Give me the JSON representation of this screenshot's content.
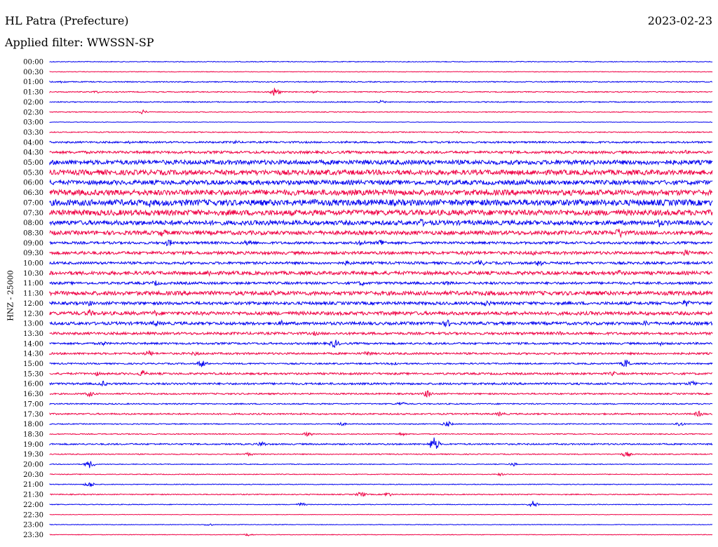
{
  "header": {
    "station": "HL Patra (Prefecture)",
    "filter": "Applied filter: WWSSN-SP",
    "date": "2023-02-23"
  },
  "chart_data": {
    "type": "line",
    "ylabel": "HNZ - 25000",
    "colors": [
      "#0000ee",
      "#ee0044"
    ],
    "rows": [
      {
        "time": "00:00",
        "a": 0.08,
        "ev": []
      },
      {
        "time": "00:30",
        "a": 0.06,
        "ev": []
      },
      {
        "time": "01:00",
        "a": 0.1,
        "ev": [
          [
            0.02,
            0.3
          ]
        ]
      },
      {
        "time": "01:30",
        "a": 0.1,
        "ev": [
          [
            0.07,
            0.3
          ],
          [
            0.34,
            1.0
          ],
          [
            0.4,
            0.3
          ]
        ]
      },
      {
        "time": "02:00",
        "a": 0.1,
        "ev": [
          [
            0.5,
            0.35
          ]
        ]
      },
      {
        "time": "02:30",
        "a": 0.08,
        "ev": [
          [
            0.14,
            0.45
          ]
        ]
      },
      {
        "time": "03:00",
        "a": 0.05,
        "ev": []
      },
      {
        "time": "03:30",
        "a": 0.1,
        "ev": [
          [
            0.62,
            0.25
          ]
        ]
      },
      {
        "time": "04:00",
        "a": 0.18,
        "ev": [
          [
            0.12,
            0.3
          ],
          [
            0.28,
            0.45
          ],
          [
            0.45,
            0.3
          ],
          [
            0.82,
            0.35
          ]
        ]
      },
      {
        "time": "04:30",
        "a": 0.25,
        "ev": [
          [
            0.05,
            0.35
          ],
          [
            0.45,
            0.3
          ],
          [
            0.55,
            0.4
          ],
          [
            0.96,
            0.45
          ]
        ]
      },
      {
        "time": "05:00",
        "a": 0.45,
        "ev": [
          [
            0.52,
            0.6
          ],
          [
            0.6,
            0.5
          ]
        ]
      },
      {
        "time": "05:30",
        "a": 0.5,
        "ev": [
          [
            0.2,
            0.7
          ],
          [
            0.42,
            0.7
          ],
          [
            0.78,
            0.6
          ]
        ]
      },
      {
        "time": "06:00",
        "a": 0.45,
        "ev": [
          [
            0.6,
            0.7
          ],
          [
            0.72,
            0.6
          ]
        ]
      },
      {
        "time": "06:30",
        "a": 0.55,
        "ev": [
          [
            0.22,
            0.8
          ],
          [
            0.66,
            0.7
          ]
        ]
      },
      {
        "time": "07:00",
        "a": 0.6,
        "ev": [
          [
            0.15,
            1.0
          ],
          [
            0.2,
            0.9
          ],
          [
            0.4,
            0.9
          ]
        ]
      },
      {
        "time": "07:30",
        "a": 0.55,
        "ev": [
          [
            0.32,
            0.7
          ],
          [
            0.85,
            0.6
          ]
        ]
      },
      {
        "time": "08:00",
        "a": 0.45,
        "ev": [
          [
            0.33,
            0.8
          ],
          [
            0.56,
            0.9
          ],
          [
            0.92,
            0.9
          ]
        ]
      },
      {
        "time": "08:30",
        "a": 0.4,
        "ev": [
          [
            0.17,
            0.9
          ],
          [
            0.86,
            1.2
          ]
        ]
      },
      {
        "time": "09:00",
        "a": 0.25,
        "ev": [
          [
            0.18,
            0.8
          ],
          [
            0.3,
            0.8
          ],
          [
            0.47,
            0.7
          ],
          [
            0.5,
            0.9
          ]
        ]
      },
      {
        "time": "09:30",
        "a": 0.3,
        "ev": [
          [
            0.05,
            0.5
          ],
          [
            0.63,
            0.6
          ],
          [
            0.73,
            0.6
          ],
          [
            0.96,
            0.8
          ]
        ]
      },
      {
        "time": "10:00",
        "a": 0.25,
        "ev": [
          [
            0.45,
            0.6
          ],
          [
            0.65,
            0.7
          ],
          [
            0.74,
            0.9
          ]
        ]
      },
      {
        "time": "10:30",
        "a": 0.35,
        "ev": [
          [
            0.24,
            0.8
          ],
          [
            0.86,
            0.7
          ]
        ]
      },
      {
        "time": "11:00",
        "a": 0.25,
        "ev": [
          [
            0.16,
            0.6
          ],
          [
            0.47,
            0.6
          ],
          [
            0.6,
            0.5
          ]
        ]
      },
      {
        "time": "11:30",
        "a": 0.4,
        "ev": [
          [
            0.34,
            0.7
          ],
          [
            0.66,
            0.7
          ]
        ]
      },
      {
        "time": "12:00",
        "a": 0.3,
        "ev": [
          [
            0.06,
            0.6
          ],
          [
            0.66,
            0.7
          ],
          [
            0.96,
            0.8
          ]
        ]
      },
      {
        "time": "12:30",
        "a": 0.35,
        "ev": [
          [
            0.06,
            0.8
          ],
          [
            0.16,
            0.7
          ],
          [
            0.52,
            0.6
          ]
        ]
      },
      {
        "time": "13:00",
        "a": 0.3,
        "ev": [
          [
            0.16,
            0.7
          ],
          [
            0.35,
            0.6
          ],
          [
            0.6,
            0.8
          ],
          [
            0.9,
            0.6
          ]
        ]
      },
      {
        "time": "13:30",
        "a": 0.25,
        "ev": [
          [
            0.4,
            0.5
          ],
          [
            0.77,
            0.5
          ]
        ]
      },
      {
        "time": "14:00",
        "a": 0.2,
        "ev": [
          [
            0.08,
            0.5
          ],
          [
            0.43,
            0.9
          ],
          [
            0.92,
            0.5
          ]
        ]
      },
      {
        "time": "14:30",
        "a": 0.2,
        "ev": [
          [
            0.15,
            0.7
          ],
          [
            0.22,
            0.5
          ],
          [
            0.48,
            0.6
          ]
        ]
      },
      {
        "time": "15:00",
        "a": 0.15,
        "ev": [
          [
            0.23,
            0.8
          ],
          [
            0.52,
            0.5
          ],
          [
            0.87,
            0.9
          ]
        ]
      },
      {
        "time": "15:30",
        "a": 0.2,
        "ev": [
          [
            0.07,
            0.5
          ],
          [
            0.14,
            0.7
          ],
          [
            0.85,
            0.5
          ]
        ]
      },
      {
        "time": "16:00",
        "a": 0.2,
        "ev": [
          [
            0.08,
            0.6
          ],
          [
            0.97,
            0.7
          ]
        ]
      },
      {
        "time": "16:30",
        "a": 0.15,
        "ev": [
          [
            0.06,
            0.6
          ],
          [
            0.57,
            0.8
          ]
        ]
      },
      {
        "time": "17:00",
        "a": 0.12,
        "ev": [
          [
            0.53,
            0.5
          ]
        ]
      },
      {
        "time": "17:30",
        "a": 0.15,
        "ev": [
          [
            0.68,
            0.5
          ],
          [
            0.98,
            0.6
          ]
        ]
      },
      {
        "time": "18:00",
        "a": 0.1,
        "ev": [
          [
            0.44,
            0.4
          ],
          [
            0.6,
            0.6
          ],
          [
            0.95,
            0.5
          ]
        ]
      },
      {
        "time": "18:30",
        "a": 0.1,
        "ev": [
          [
            0.39,
            0.5
          ],
          [
            0.53,
            0.4
          ]
        ]
      },
      {
        "time": "19:00",
        "a": 0.15,
        "ev": [
          [
            0.32,
            0.6
          ],
          [
            0.58,
            1.5
          ]
        ]
      },
      {
        "time": "19:30",
        "a": 0.1,
        "ev": [
          [
            0.3,
            0.4
          ],
          [
            0.87,
            0.6
          ]
        ]
      },
      {
        "time": "20:00",
        "a": 0.08,
        "ev": [
          [
            0.06,
            0.8
          ],
          [
            0.7,
            0.4
          ]
        ]
      },
      {
        "time": "20:30",
        "a": 0.08,
        "ev": [
          [
            0.68,
            0.3
          ]
        ]
      },
      {
        "time": "21:00",
        "a": 0.08,
        "ev": [
          [
            0.06,
            0.6
          ]
        ]
      },
      {
        "time": "21:30",
        "a": 0.1,
        "ev": [
          [
            0.47,
            0.6
          ],
          [
            0.51,
            0.5
          ]
        ]
      },
      {
        "time": "22:00",
        "a": 0.08,
        "ev": [
          [
            0.38,
            0.4
          ],
          [
            0.73,
            0.8
          ]
        ]
      },
      {
        "time": "22:30",
        "a": 0.05,
        "ev": []
      },
      {
        "time": "23:00",
        "a": 0.06,
        "ev": [
          [
            0.24,
            0.3
          ]
        ]
      },
      {
        "time": "23:30",
        "a": 0.06,
        "ev": [
          [
            0.3,
            0.3
          ]
        ]
      }
    ]
  }
}
